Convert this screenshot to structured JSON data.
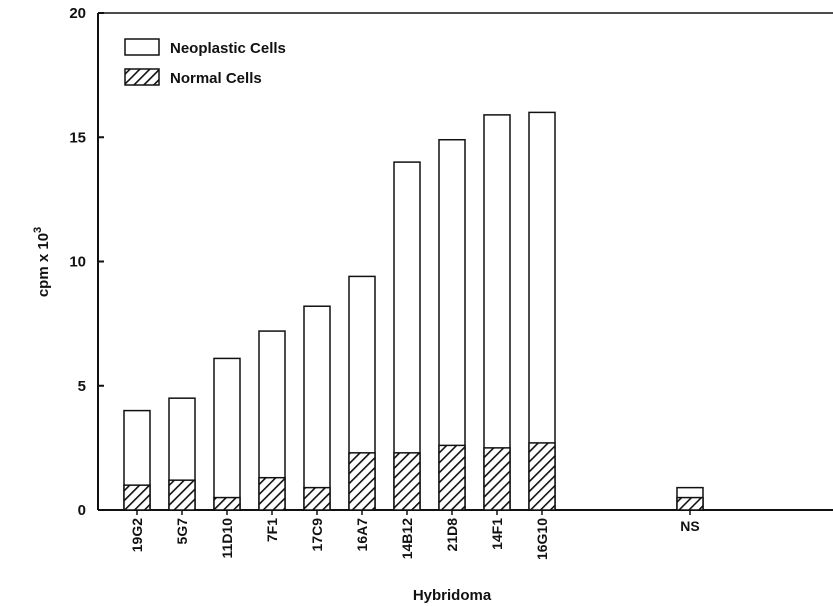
{
  "chart_data": {
    "type": "bar",
    "stacked_overlay": true,
    "xlabel": "Hybridoma",
    "ylabel": "cpm x 10",
    "ylabel_superscript": "3",
    "ylim": [
      0,
      20
    ],
    "yticks": [
      "0",
      "5",
      "10",
      "15",
      "20"
    ],
    "grid": false,
    "legend_position": "top-left",
    "categories": [
      "19G2",
      "5G7",
      "11D10",
      "7F1",
      "17C9",
      "16A7",
      "14B12",
      "21D8",
      "14F1",
      "16G10",
      "NS"
    ],
    "series": [
      {
        "name": "Neoplastic Cells",
        "fill": "none",
        "values": [
          4.0,
          4.5,
          6.1,
          7.2,
          8.2,
          9.4,
          14.0,
          14.9,
          15.9,
          16.0,
          0.9
        ]
      },
      {
        "name": "Normal Cells",
        "fill": "hatched",
        "values": [
          1.0,
          1.2,
          0.5,
          1.3,
          0.9,
          2.3,
          2.3,
          2.6,
          2.5,
          2.7,
          0.5
        ]
      }
    ]
  },
  "colors": {
    "ink": "#111111",
    "background": "#ffffff",
    "hatch": "#111111"
  }
}
